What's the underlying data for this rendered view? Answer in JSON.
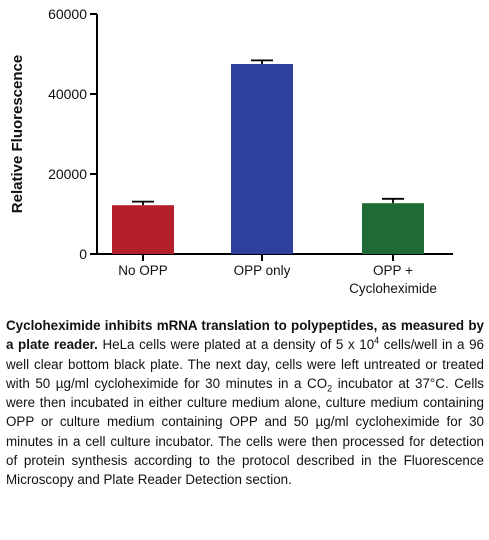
{
  "chart_data": {
    "type": "bar",
    "ylabel": "Relative Fluorescence",
    "ylim": [
      0,
      60000
    ],
    "yticks": [
      "0",
      "20000",
      "40000",
      "60000"
    ],
    "categories": [
      "No OPP",
      "OPP only",
      "OPP + Cycloheximide"
    ],
    "category_lines": [
      [
        "No OPP"
      ],
      [
        "OPP only"
      ],
      [
        "OPP +",
        "Cycloheximide"
      ]
    ],
    "values": [
      12200,
      47500,
      12700
    ],
    "errors": [
      900,
      900,
      1100
    ],
    "colors": [
      "#b3202a",
      "#2f3f9e",
      "#1f6b35"
    ],
    "grid": false,
    "legend": "none"
  },
  "caption": {
    "bold": "Cycloheximide inhibits mRNA translation to polypeptides, as measured by a plate reader.",
    "p1": " HeLa cells were plated at a density of 5 x 10",
    "sup": "4",
    "p2": " cells/well in a 96 well clear bottom black plate. The next day, cells were left untreated or treated with 50 µg/ml cycloheximide for 30 minutes in a CO",
    "sub": "2",
    "p3": " incubator at 37°C. Cells were then incubated in either culture medium alone, culture medium containing OPP or culture medium containing OPP and 50 µg/ml cycloheximide for 30 minutes in a cell culture incubator. The cells were then processed for detection of protein synthesis according to the protocol described in the Fluorescence Microscopy and Plate Reader Detection section."
  }
}
